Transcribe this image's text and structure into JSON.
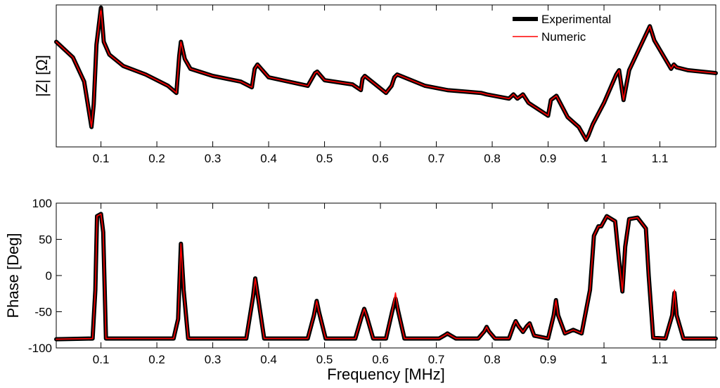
{
  "chart_data": [
    {
      "type": "line",
      "title": "",
      "xlabel": "",
      "ylabel": "|Z| [Ω]",
      "xlim": [
        0.02,
        1.2
      ],
      "ylim": [
        0,
        1
      ],
      "yticks_visible": false,
      "x_ticks": [
        "0.1",
        "0.2",
        "0.3",
        "0.4",
        "0.5",
        "0.6",
        "0.7",
        "0.8",
        "0.9",
        "1",
        "1.1"
      ],
      "legend": {
        "position": "top-right",
        "entries": [
          "Experimental",
          "Numeric"
        ]
      },
      "series": [
        {
          "name": "Experimental",
          "color": "#000000",
          "x": [
            0.02,
            0.05,
            0.07,
            0.083,
            0.087,
            0.092,
            0.1,
            0.105,
            0.115,
            0.14,
            0.18,
            0.22,
            0.235,
            0.24,
            0.243,
            0.25,
            0.26,
            0.3,
            0.35,
            0.37,
            0.375,
            0.38,
            0.4,
            0.47,
            0.483,
            0.487,
            0.5,
            0.55,
            0.565,
            0.568,
            0.572,
            0.61,
            0.62,
            0.625,
            0.63,
            0.68,
            0.72,
            0.78,
            0.79,
            0.83,
            0.838,
            0.845,
            0.855,
            0.865,
            0.9,
            0.905,
            0.915,
            0.935,
            0.955,
            0.968,
            0.972,
            0.98,
            1.0,
            1.022,
            1.027,
            1.035,
            1.045,
            1.07,
            1.082,
            1.09,
            1.12,
            1.125,
            1.13,
            1.15,
            1.2
          ],
          "y": [
            0.74,
            0.63,
            0.46,
            0.14,
            0.3,
            0.72,
            0.98,
            0.74,
            0.65,
            0.57,
            0.51,
            0.43,
            0.38,
            0.64,
            0.74,
            0.62,
            0.55,
            0.5,
            0.46,
            0.42,
            0.55,
            0.58,
            0.49,
            0.43,
            0.52,
            0.53,
            0.47,
            0.44,
            0.4,
            0.48,
            0.5,
            0.38,
            0.43,
            0.49,
            0.51,
            0.43,
            0.4,
            0.38,
            0.37,
            0.34,
            0.37,
            0.34,
            0.37,
            0.31,
            0.22,
            0.33,
            0.36,
            0.21,
            0.14,
            0.05,
            0.08,
            0.16,
            0.31,
            0.51,
            0.54,
            0.33,
            0.54,
            0.75,
            0.85,
            0.75,
            0.55,
            0.58,
            0.56,
            0.54,
            0.52
          ]
        },
        {
          "name": "Numeric",
          "color": "#ff0000",
          "x": [
            0.02,
            0.05,
            0.07,
            0.083,
            0.087,
            0.092,
            0.1,
            0.105,
            0.115,
            0.14,
            0.18,
            0.22,
            0.235,
            0.24,
            0.243,
            0.25,
            0.26,
            0.3,
            0.35,
            0.37,
            0.375,
            0.38,
            0.4,
            0.47,
            0.483,
            0.487,
            0.5,
            0.55,
            0.565,
            0.568,
            0.572,
            0.61,
            0.62,
            0.625,
            0.63,
            0.68,
            0.72,
            0.78,
            0.79,
            0.83,
            0.838,
            0.845,
            0.855,
            0.865,
            0.9,
            0.905,
            0.915,
            0.935,
            0.955,
            0.968,
            0.972,
            0.98,
            1.0,
            1.022,
            1.027,
            1.035,
            1.045,
            1.07,
            1.082,
            1.09,
            1.12,
            1.125,
            1.13,
            1.15,
            1.2
          ],
          "y": [
            0.74,
            0.63,
            0.46,
            0.14,
            0.3,
            0.72,
            0.98,
            0.74,
            0.65,
            0.57,
            0.51,
            0.43,
            0.38,
            0.64,
            0.74,
            0.62,
            0.55,
            0.5,
            0.46,
            0.42,
            0.55,
            0.58,
            0.49,
            0.43,
            0.52,
            0.53,
            0.47,
            0.44,
            0.4,
            0.48,
            0.5,
            0.38,
            0.43,
            0.49,
            0.51,
            0.43,
            0.4,
            0.38,
            0.37,
            0.34,
            0.37,
            0.34,
            0.37,
            0.31,
            0.22,
            0.33,
            0.36,
            0.21,
            0.14,
            0.05,
            0.08,
            0.16,
            0.31,
            0.51,
            0.54,
            0.33,
            0.54,
            0.75,
            0.85,
            0.75,
            0.55,
            0.58,
            0.56,
            0.54,
            0.52
          ]
        }
      ]
    },
    {
      "type": "line",
      "title": "",
      "xlabel": "Frequency [MHz]",
      "ylabel": "Phase [Deg]",
      "xlim": [
        0.02,
        1.2
      ],
      "ylim": [
        -100,
        100
      ],
      "x_ticks": [
        "0.1",
        "0.2",
        "0.3",
        "0.4",
        "0.5",
        "0.6",
        "0.7",
        "0.8",
        "0.9",
        "1",
        "1.1"
      ],
      "y_ticks": [
        "-100",
        "-50",
        "0",
        "50",
        "100"
      ],
      "series": [
        {
          "name": "Experimental",
          "color": "#000000",
          "x": [
            0.02,
            0.085,
            0.09,
            0.093,
            0.1,
            0.104,
            0.109,
            0.23,
            0.238,
            0.243,
            0.248,
            0.256,
            0.36,
            0.372,
            0.376,
            0.381,
            0.392,
            0.47,
            0.481,
            0.486,
            0.49,
            0.502,
            0.555,
            0.566,
            0.571,
            0.575,
            0.587,
            0.61,
            0.621,
            0.627,
            0.632,
            0.643,
            0.705,
            0.716,
            0.72,
            0.724,
            0.735,
            0.775,
            0.786,
            0.79,
            0.794,
            0.805,
            0.83,
            0.838,
            0.842,
            0.847,
            0.855,
            0.862,
            0.867,
            0.875,
            0.9,
            0.91,
            0.914,
            0.918,
            0.93,
            0.945,
            0.96,
            0.975,
            0.982,
            0.99,
            0.995,
            1.005,
            1.02,
            1.027,
            1.033,
            1.038,
            1.045,
            1.06,
            1.075,
            1.08,
            1.088,
            1.11,
            1.122,
            1.126,
            1.13,
            1.142,
            1.2
          ],
          "y": [
            -88,
            -87,
            -20,
            82,
            85,
            60,
            -87,
            -87,
            -60,
            44,
            -20,
            -87,
            -87,
            -30,
            -4,
            -30,
            -87,
            -87,
            -55,
            -35,
            -50,
            -87,
            -87,
            -58,
            -46,
            -55,
            -87,
            -87,
            -50,
            -32,
            -50,
            -87,
            -87,
            -82,
            -80,
            -82,
            -87,
            -87,
            -77,
            -71,
            -77,
            -87,
            -87,
            -70,
            -63,
            -70,
            -78,
            -70,
            -66,
            -83,
            -87,
            -55,
            -34,
            -55,
            -80,
            -75,
            -80,
            -20,
            55,
            68,
            68,
            82,
            75,
            20,
            -22,
            40,
            78,
            80,
            65,
            0,
            -86,
            -87,
            -55,
            -24,
            -55,
            -87,
            -87
          ]
        },
        {
          "name": "Numeric",
          "color": "#ff0000",
          "x": [
            0.02,
            0.085,
            0.09,
            0.093,
            0.1,
            0.104,
            0.109,
            0.23,
            0.238,
            0.243,
            0.248,
            0.256,
            0.36,
            0.372,
            0.376,
            0.381,
            0.392,
            0.47,
            0.481,
            0.486,
            0.49,
            0.502,
            0.555,
            0.566,
            0.571,
            0.575,
            0.587,
            0.61,
            0.621,
            0.627,
            0.632,
            0.643,
            0.705,
            0.716,
            0.72,
            0.724,
            0.735,
            0.775,
            0.786,
            0.79,
            0.794,
            0.805,
            0.83,
            0.838,
            0.842,
            0.847,
            0.855,
            0.862,
            0.867,
            0.875,
            0.9,
            0.91,
            0.914,
            0.918,
            0.93,
            0.945,
            0.96,
            0.975,
            0.982,
            0.99,
            0.995,
            1.005,
            1.02,
            1.027,
            1.033,
            1.038,
            1.045,
            1.06,
            1.075,
            1.08,
            1.088,
            1.11,
            1.122,
            1.126,
            1.13,
            1.142,
            1.2
          ],
          "y": [
            -88,
            -87,
            -20,
            82,
            85,
            60,
            -87,
            -87,
            -60,
            44,
            -20,
            -87,
            -87,
            -30,
            -4,
            -30,
            -87,
            -87,
            -55,
            -35,
            -50,
            -87,
            -87,
            -58,
            -46,
            -55,
            -87,
            -87,
            -50,
            -24,
            -50,
            -87,
            -87,
            -82,
            -80,
            -82,
            -87,
            -87,
            -77,
            -71,
            -77,
            -87,
            -87,
            -70,
            -63,
            -70,
            -78,
            -70,
            -66,
            -83,
            -87,
            -55,
            -34,
            -55,
            -80,
            -75,
            -80,
            -20,
            55,
            68,
            68,
            82,
            75,
            20,
            -22,
            40,
            78,
            80,
            65,
            0,
            -86,
            -87,
            -55,
            -20,
            -55,
            -87,
            -87
          ]
        }
      ]
    }
  ]
}
